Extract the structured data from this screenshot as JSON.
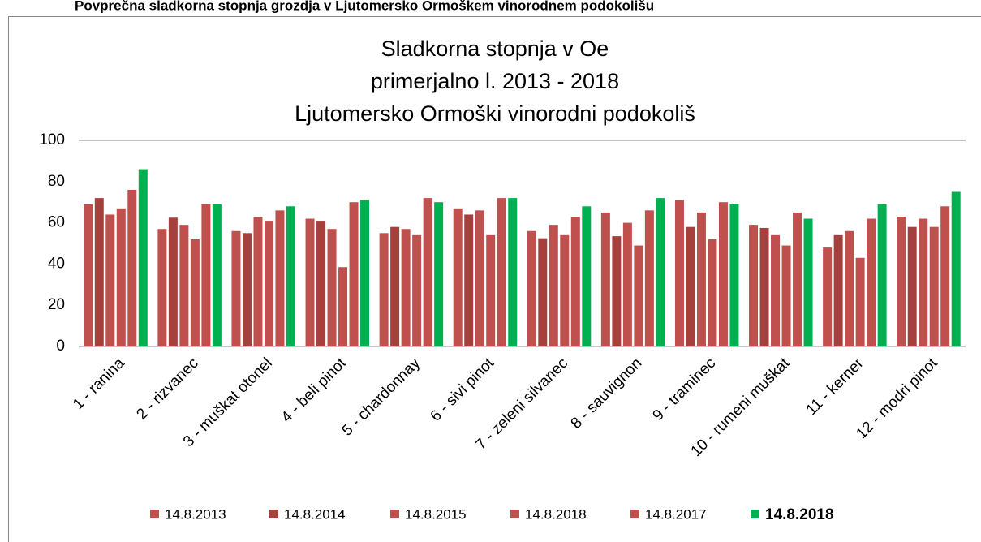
{
  "header": "Povprečna sladkorna stopnja grozdja v Ljutomersko Ormoškem vinorodnem podokolišu",
  "chart_data": {
    "type": "bar",
    "title": [
      "Sladkorna stopnja v Oe",
      "primerjalno l. 2013 - 2018",
      "Ljutomersko Ormoški vinorodni podokoliš"
    ],
    "categories": [
      "1 - ranina",
      "2 - rizvanec",
      "3 - muškat otonel",
      "4 - beli pinot",
      "5 - chardonnay",
      "6 - sivi pinot",
      "7 - zeleni silvanec",
      "8 - sauvignon",
      "9 - traminec",
      "10 - rumeni muškat",
      "11 - kerner",
      "12 - modri pinot"
    ],
    "series": [
      {
        "name": "14.8.2013",
        "color": "#c0504d",
        "values": [
          69,
          57,
          56,
          62,
          55,
          67,
          56,
          65,
          71,
          59,
          48,
          63
        ]
      },
      {
        "name": "14.8.2014",
        "color": "#a5403d",
        "values": [
          72,
          62.5,
          55,
          61,
          58,
          64,
          52.5,
          53.5,
          58,
          57.5,
          54,
          58
        ]
      },
      {
        "name": "14.8.2015",
        "color": "#c0504d",
        "values": [
          64,
          59,
          63,
          57,
          57,
          66,
          59,
          60,
          65,
          54,
          56,
          62
        ]
      },
      {
        "name": "14.8.2018",
        "color": "#c0504d",
        "values": [
          67,
          52,
          61,
          38.5,
          54,
          54,
          54,
          49,
          52,
          49,
          43,
          58
        ]
      },
      {
        "name": "14.8.2017",
        "color": "#c0504d",
        "values": [
          76,
          69,
          66,
          70,
          72,
          72,
          63,
          66,
          70,
          65,
          62,
          68
        ]
      },
      {
        "name": "14.8.2018",
        "color": "#00b050",
        "values": [
          86,
          69,
          68,
          71,
          70,
          72,
          68,
          72,
          69,
          62,
          69,
          75
        ]
      }
    ],
    "ylim": [
      0,
      100
    ],
    "yticks": [
      0,
      20,
      40,
      60,
      80,
      100
    ],
    "grid": false
  }
}
